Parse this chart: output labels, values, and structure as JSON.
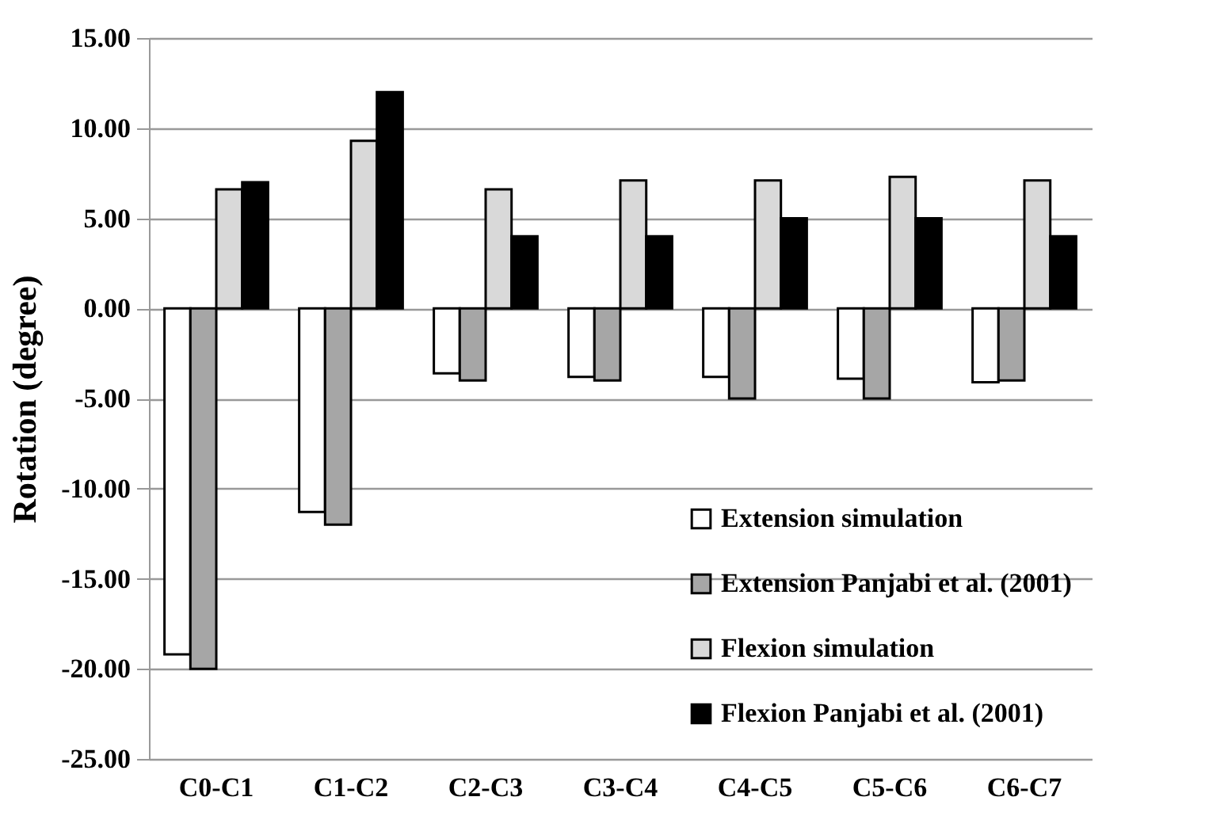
{
  "chart_data": {
    "type": "bar",
    "ylabel": "Rotation (degree)",
    "categories": [
      "C0-C1",
      "C1-C2",
      "C2-C3",
      "C3-C4",
      "C4-C5",
      "C5-C6",
      "C6-C7"
    ],
    "series": [
      {
        "name": "Extension simulation",
        "color": "#ffffff",
        "values": [
          -19.2,
          -11.3,
          -3.6,
          -3.8,
          -3.8,
          -3.9,
          -4.1
        ]
      },
      {
        "name": "Extension Panjabi et al. (2001)",
        "color": "#a6a6a6",
        "values": [
          -20,
          -12,
          -4,
          -4,
          -5,
          -5,
          -4
        ]
      },
      {
        "name": "Flexion simulation",
        "color": "#d9d9d9",
        "values": [
          6.6,
          9.3,
          6.6,
          7.1,
          7.1,
          7.3,
          7.1
        ]
      },
      {
        "name": "Flexion Panjabi et al. (2001)",
        "color": "#000000",
        "values": [
          7,
          12,
          4,
          4,
          5,
          5,
          4
        ]
      }
    ],
    "ylim": [
      -25,
      15
    ],
    "yticks": [
      {
        "value": -25,
        "label": "-25.00"
      },
      {
        "value": -20,
        "label": "-20.00"
      },
      {
        "value": -15,
        "label": "-15.00"
      },
      {
        "value": -10,
        "label": "-10.00"
      },
      {
        "value": -5,
        "label": "-5.00"
      },
      {
        "value": 0,
        "label": "0.00"
      },
      {
        "value": 5,
        "label": "5.00"
      },
      {
        "value": 10,
        "label": "10.00"
      },
      {
        "value": 15,
        "label": "15.00"
      }
    ],
    "grid": "y",
    "legend": "bottom right"
  }
}
